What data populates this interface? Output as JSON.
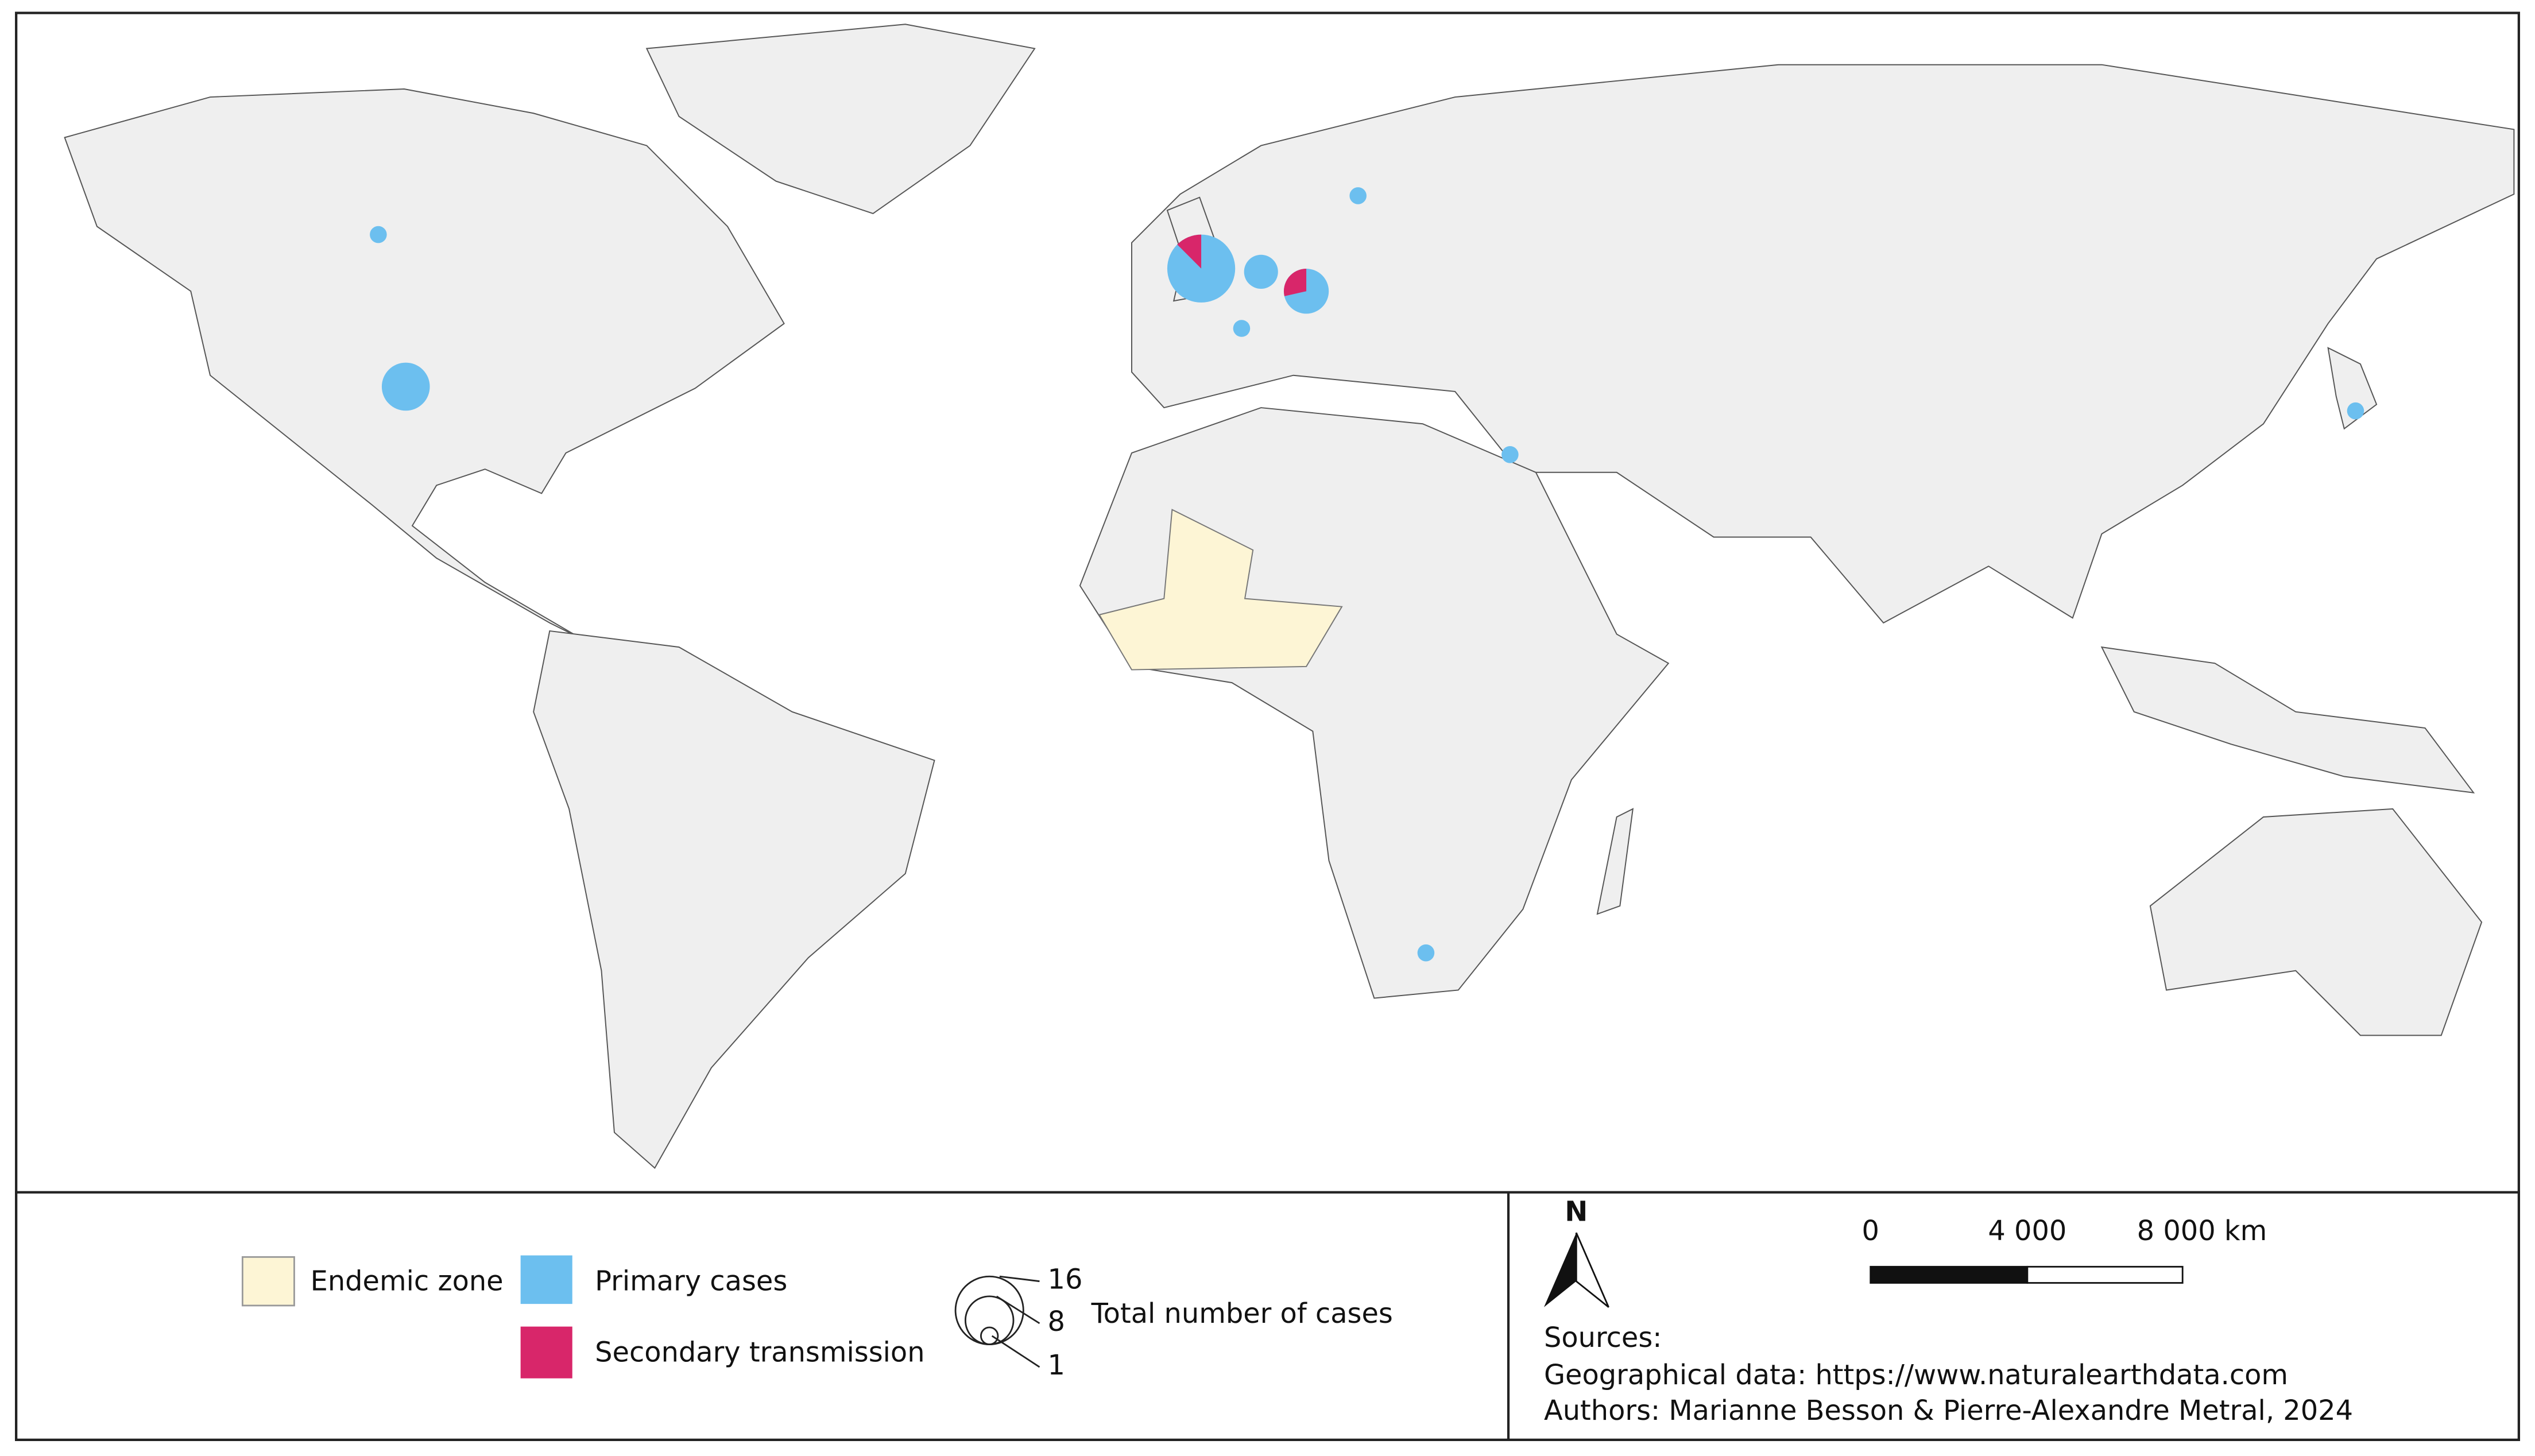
{
  "cases": [
    {
      "total": 1,
      "secondary": 0
    },
    {
      "total": 8,
      "secondary": 0
    },
    {
      "total": 16,
      "secondary": 2
    },
    {
      "total": 4,
      "secondary": 0
    },
    {
      "total": 1,
      "secondary": 0
    },
    {
      "total": 7,
      "secondary": 2
    },
    {
      "total": 1,
      "secondary": 0
    },
    {
      "total": 1,
      "secondary": 0
    },
    {
      "total": 1,
      "secondary": 0
    },
    {
      "total": 1,
      "secondary": 0
    }
  ],
  "legend": {
    "endemic": "Endemic zone",
    "primary": "Primary cases",
    "secondary": "Secondary transmission",
    "size_title": "Total number of cases",
    "size_ticks": [
      16,
      8,
      1
    ]
  },
  "north": "N",
  "scale_bar": {
    "labels": [
      "0",
      "4 000",
      "8 000 km"
    ]
  },
  "sources": {
    "heading": "Sources:",
    "geo": "Geographical data: https://www.naturalearthdata.com",
    "authors": "Authors: Marianne Besson & Pierre-Alexandre Metral, 2024"
  }
}
